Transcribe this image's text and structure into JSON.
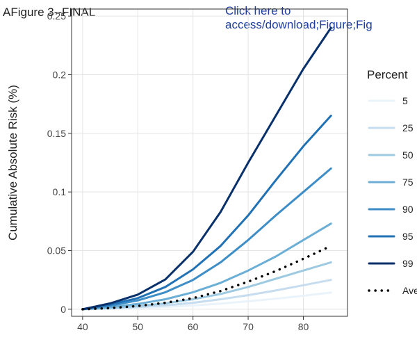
{
  "figure_title": "Figure 3--FINAL",
  "panel_label": "A",
  "link": {
    "line1": "Click here to",
    "line2": "access/download;Figure;Fig"
  },
  "chart_data": {
    "type": "line",
    "title": "",
    "xlabel": "",
    "ylabel": "Cumulative Absolute Risk (%)",
    "x": [
      40,
      45,
      50,
      55,
      60,
      65,
      70,
      75,
      80,
      85
    ],
    "xlim": [
      38,
      88
    ],
    "ylim": [
      -0.006,
      0.256
    ],
    "xticks": [
      40,
      50,
      60,
      70,
      80
    ],
    "yticks": [
      0,
      0.05,
      0.1,
      0.15,
      0.2,
      0.25
    ],
    "ytick_labels": [
      "0",
      "0.05",
      "0.1",
      "0.15",
      "0.2",
      "0.25"
    ],
    "grid": true,
    "legend_title": "Percent",
    "legend_position": "right",
    "series": [
      {
        "name": "5",
        "color": "#eaf3fa",
        "dash": false,
        "values": [
          0.0,
          0.0004,
          0.001,
          0.002,
          0.0032,
          0.0048,
          0.0068,
          0.009,
          0.0115,
          0.0142
        ]
      },
      {
        "name": "25",
        "color": "#c6dcef",
        "dash": false,
        "values": [
          0.0,
          0.0007,
          0.0018,
          0.0033,
          0.0055,
          0.0085,
          0.012,
          0.016,
          0.0205,
          0.025
        ]
      },
      {
        "name": "50",
        "color": "#9ecae1",
        "dash": false,
        "values": [
          0.0,
          0.0011,
          0.0027,
          0.005,
          0.0085,
          0.013,
          0.019,
          0.026,
          0.033,
          0.04
        ]
      },
      {
        "name": "75",
        "color": "#6baed6",
        "dash": false,
        "values": [
          0.0,
          0.0018,
          0.0045,
          0.0085,
          0.0145,
          0.0225,
          0.033,
          0.045,
          0.059,
          0.073
        ]
      },
      {
        "name": "90",
        "color": "#3d8dc7",
        "dash": false,
        "values": [
          0.0,
          0.003,
          0.0075,
          0.0145,
          0.025,
          0.04,
          0.059,
          0.08,
          0.1,
          0.12
        ]
      },
      {
        "name": "95",
        "color": "#2171b5",
        "dash": false,
        "values": [
          0.0,
          0.004,
          0.0095,
          0.019,
          0.034,
          0.054,
          0.08,
          0.11,
          0.139,
          0.165
        ]
      },
      {
        "name": "99",
        "color": "#08306b",
        "dash": false,
        "values": [
          0.0,
          0.005,
          0.0125,
          0.0255,
          0.049,
          0.083,
          0.125,
          0.165,
          0.205,
          0.24
        ]
      },
      {
        "name": "Ave",
        "color": "#000000",
        "dash": true,
        "values": [
          0.0,
          0.001,
          0.0028,
          0.0055,
          0.0095,
          0.0155,
          0.0235,
          0.0325,
          0.043,
          0.054
        ]
      }
    ]
  }
}
